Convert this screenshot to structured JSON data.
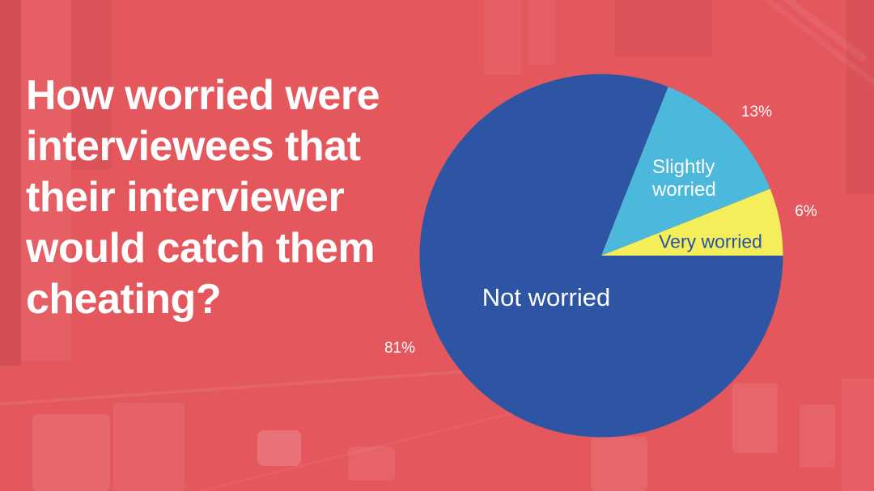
{
  "page": {
    "background_color": "#e4575d",
    "background_photo_description": "faint city street with buildings and heavy traffic under a red overlay",
    "text_color": "#ffffff"
  },
  "header": {
    "title": "How worried were interviewees that their interviewer would catch them cheating?",
    "title_lines": [
      "How worried were",
      "interviewees that",
      "their interviewer",
      "would catch them",
      "cheating?"
    ]
  },
  "chart_data": {
    "type": "pie",
    "title": "How worried were interviewees that their interviewer would catch them cheating?",
    "unit": "%",
    "slices": [
      {
        "label": "Very worried",
        "value": 6,
        "pct_label": "6%",
        "color": "#f5ee5b",
        "label_color": "#2a52a2"
      },
      {
        "label": "Slightly worried",
        "value": 13,
        "pct_label": "13%",
        "color": "#4cb8db",
        "label_color": "#ffffff"
      },
      {
        "label": "Not worried",
        "value": 81,
        "pct_label": "81%",
        "color": "#2e55a4",
        "label_color": "#ffffff"
      }
    ],
    "start_angle_deg": 0,
    "direction": "counterclockwise",
    "legend": "none",
    "category_labels": "inside slices",
    "value_labels": "outside slices"
  }
}
